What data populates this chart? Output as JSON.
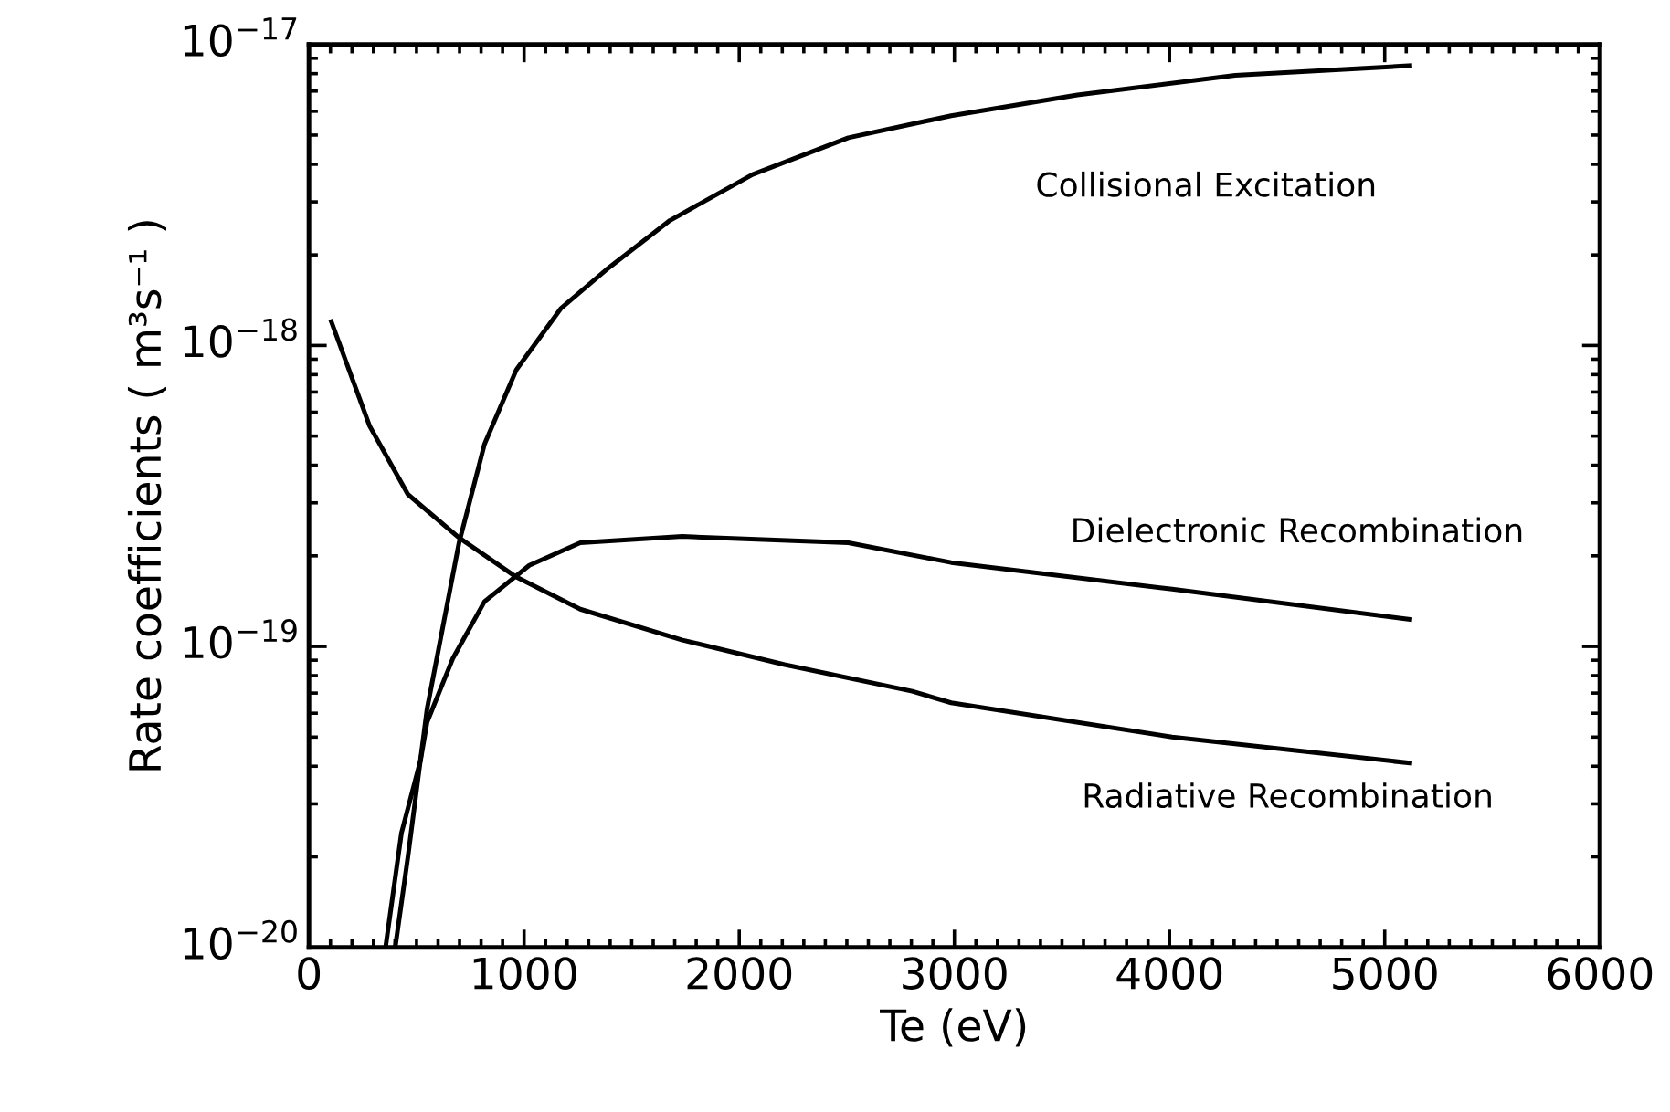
{
  "chart_data": {
    "type": "line",
    "xlabel": "Te (eV)",
    "ylabel": "Rate coefficients ( m³s⁻¹ )",
    "log": true,
    "xlim": [
      0,
      6000
    ],
    "ylim": [
      1e-20,
      1e-17
    ],
    "xticks": [
      0,
      1000,
      2000,
      3000,
      4000,
      5000,
      6000
    ],
    "yticks": [
      {
        "value": 1e-20,
        "label": "10$^{−20}$"
      },
      {
        "value": 1e-19,
        "label": "10$^{−19}$"
      },
      {
        "value": 1e-18,
        "label": "10$^{−18}$"
      },
      {
        "value": 1e-17,
        "label": "10$^{−17}$"
      }
    ],
    "grid": false,
    "legend": false,
    "marker": "none",
    "line_style": "solid",
    "series": [
      {
        "name": "Collisional Excitation",
        "color": "#000000",
        "x": [
          401,
          460,
          549,
          697,
          816,
          964,
          1172,
          1380,
          1677,
          2062,
          2507,
          2985,
          3572,
          4305,
          5117
        ],
        "values": [
          1e-20,
          2e-20,
          6.2e-20,
          2.2e-19,
          4.7e-19,
          8.3e-19,
          1.33e-18,
          1.78e-18,
          2.6e-18,
          3.7e-18,
          4.9e-18,
          5.8e-18,
          6.8e-18,
          7.9e-18,
          8.5e-18
        ]
      },
      {
        "name": "Dielectronic Recombination",
        "color": "#000000",
        "x": [
          356,
          430,
          519,
          549,
          668,
          816,
          1024,
          1261,
          1736,
          2507,
          2985,
          4012,
          5117
        ],
        "values": [
          1e-20,
          2.4e-20,
          4.2e-20,
          5.6e-20,
          9.1e-20,
          1.41e-19,
          1.86e-19,
          2.21e-19,
          2.32e-19,
          2.21e-19,
          1.9e-19,
          1.55e-19,
          1.23e-19
        ]
      },
      {
        "name": "Radiative Recombination",
        "color": "#000000",
        "x": [
          104,
          282,
          460,
          697,
          964,
          1261,
          1736,
          2211,
          2804,
          2985,
          4012,
          5117
        ],
        "values": [
          1.2e-18,
          5.4e-19,
          3.2e-19,
          2.3e-19,
          1.7e-19,
          1.33e-19,
          1.05e-19,
          8.7e-20,
          7.1e-20,
          6.5e-20,
          5e-20,
          4.1e-20
        ]
      }
    ]
  }
}
